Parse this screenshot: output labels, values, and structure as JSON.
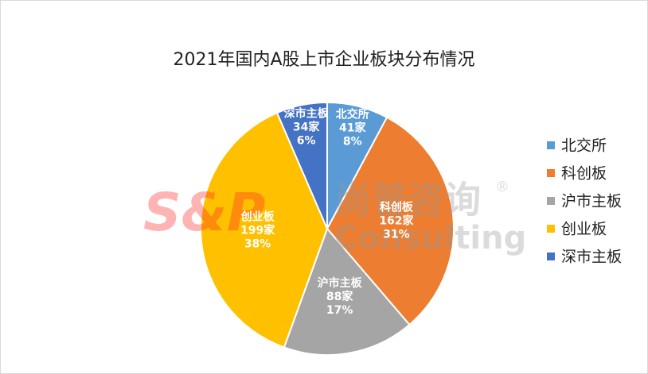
{
  "chart_data": {
    "type": "pie",
    "title": "2021年国内A股上市企业板块分布情况",
    "categories": [
      "北交所",
      "科创板",
      "沪市主板",
      "创业板",
      "深市主板"
    ],
    "values": [
      41,
      162,
      88,
      199,
      34
    ],
    "value_labels": [
      "41家",
      "162家",
      "88家",
      "199家",
      "34家"
    ],
    "percent_labels": [
      "8%",
      "31%",
      "17%",
      "38%",
      "6%"
    ],
    "colors": [
      "#5b9bd5",
      "#ed7d31",
      "#a5a5a5",
      "#ffc000",
      "#4472c4"
    ],
    "legend": "right"
  },
  "watermark": {
    "logo": "S&P",
    "name": "尚普咨询",
    "mark": "®",
    "subtitle": "Consulting"
  }
}
